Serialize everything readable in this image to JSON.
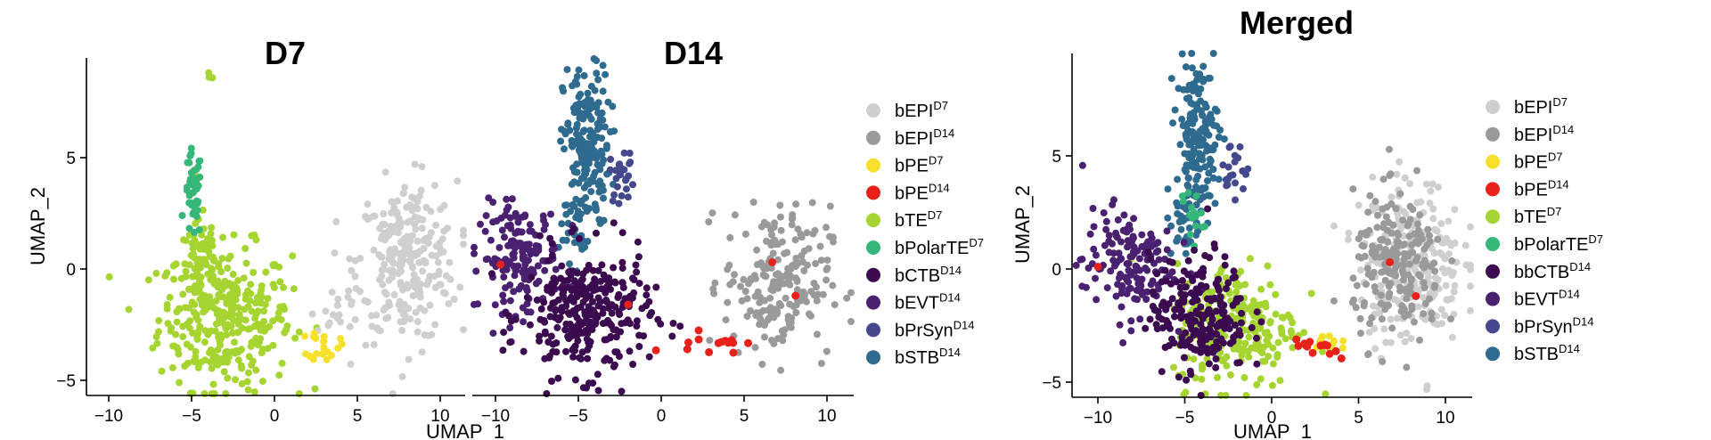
{
  "chart_data": [
    {
      "type": "scatter",
      "title": "D7",
      "xlabel": "UMAP_1",
      "ylabel": "UMAP_2",
      "xlim": [
        -12,
        12
      ],
      "ylim": [
        -6,
        9.5
      ],
      "xticks": [
        -10,
        -5,
        0,
        5,
        10
      ],
      "yticks": [
        -5,
        0,
        5
      ],
      "grid": false,
      "clusters": [
        {
          "group": "bTE_D7",
          "cx": -3.0,
          "cy": -2.2,
          "sx": 2.0,
          "sy": 1.6,
          "n": 320
        },
        {
          "group": "bTE_D7",
          "cx": -4.5,
          "cy": 0.3,
          "sx": 0.7,
          "sy": 1.2,
          "n": 60
        },
        {
          "group": "bTE_D7",
          "cx": -3.9,
          "cy": 8.6,
          "sx": 0.3,
          "sy": 0.1,
          "n": 3
        },
        {
          "group": "bPolarTE_D7",
          "cx": -4.9,
          "cy": 3.3,
          "sx": 0.25,
          "sy": 1.0,
          "n": 45
        },
        {
          "group": "bEPI_D7",
          "cx": 8.0,
          "cy": 0.3,
          "sx": 1.5,
          "sy": 1.8,
          "n": 260
        },
        {
          "group": "bEPI_D7",
          "cx": 3.8,
          "cy": -1.6,
          "sx": 0.7,
          "sy": 0.7,
          "n": 18
        },
        {
          "group": "bPE_D7",
          "cx": 3.0,
          "cy": -3.4,
          "sx": 0.45,
          "sy": 0.35,
          "n": 22
        }
      ]
    },
    {
      "type": "scatter",
      "title": "D14",
      "xlabel": "UMAP_1",
      "ylabel": "",
      "xlim": [
        -12,
        12
      ],
      "ylim": [
        -6,
        9.5
      ],
      "xticks": [
        -10,
        -5,
        0,
        5,
        10
      ],
      "yticks": [],
      "grid": false,
      "clusters": [
        {
          "group": "bSTB_D14",
          "cx": -4.5,
          "cy": 5.5,
          "sx": 0.7,
          "sy": 1.8,
          "n": 180
        },
        {
          "group": "bSTB_D14",
          "cx": -5.3,
          "cy": 2.0,
          "sx": 0.4,
          "sy": 0.8,
          "n": 30
        },
        {
          "group": "bPrSyn_D14",
          "cx": -2.3,
          "cy": 4.2,
          "sx": 0.4,
          "sy": 0.6,
          "n": 25
        },
        {
          "group": "bEVT_D14",
          "cx": -8.5,
          "cy": 0.5,
          "sx": 1.2,
          "sy": 1.2,
          "n": 160
        },
        {
          "group": "bCTB_D14",
          "cx": -4.5,
          "cy": -2.0,
          "sx": 1.9,
          "sy": 1.4,
          "n": 300
        },
        {
          "group": "bEPI_D14",
          "cx": 7.0,
          "cy": -0.6,
          "sx": 1.6,
          "sy": 1.7,
          "n": 200
        },
        {
          "group": "bPE_D14",
          "cx": 3.0,
          "cy": -3.2,
          "sx": 1.0,
          "sy": 0.3,
          "n": 14
        },
        {
          "group": "bPE_D14",
          "cx": -9.7,
          "cy": 0.2,
          "sx": 0.05,
          "sy": 0.05,
          "n": 1
        },
        {
          "group": "bPE_D14",
          "cx": 6.7,
          "cy": 0.3,
          "sx": 0.05,
          "sy": 0.05,
          "n": 1
        },
        {
          "group": "bPE_D14",
          "cx": 8.1,
          "cy": -1.2,
          "sx": 0.05,
          "sy": 0.05,
          "n": 1
        },
        {
          "group": "bPE_D14",
          "cx": -2.0,
          "cy": -1.6,
          "sx": 0.05,
          "sy": 0.05,
          "n": 1
        }
      ]
    },
    {
      "type": "scatter",
      "title": "Merged",
      "xlabel": "UMAP_1",
      "ylabel": "UMAP_2",
      "xlim": [
        -12,
        12
      ],
      "ylim": [
        -6,
        9.5
      ],
      "xticks": [
        -10,
        -5,
        0,
        5,
        10
      ],
      "yticks": [
        -5,
        0,
        5
      ],
      "grid": false,
      "clusters": [
        {
          "group": "bTE_D7",
          "cx": -2.0,
          "cy": -2.5,
          "sx": 1.8,
          "sy": 1.4,
          "n": 230
        },
        {
          "group": "bSTB_D14",
          "cx": -4.3,
          "cy": 5.8,
          "sx": 0.6,
          "sy": 1.7,
          "n": 170
        },
        {
          "group": "bSTB_D14",
          "cx": -5.0,
          "cy": 2.0,
          "sx": 0.4,
          "sy": 0.8,
          "n": 30
        },
        {
          "group": "bPolarTE_D7",
          "cx": -4.6,
          "cy": 2.3,
          "sx": 0.3,
          "sy": 0.7,
          "n": 15
        },
        {
          "group": "bPrSyn_D14",
          "cx": -2.2,
          "cy": 4.4,
          "sx": 0.4,
          "sy": 0.6,
          "n": 20
        },
        {
          "group": "bEVT_D14",
          "cx": -8.3,
          "cy": 0.3,
          "sx": 1.3,
          "sy": 1.2,
          "n": 150
        },
        {
          "group": "bCTB_D14",
          "cx": -4.2,
          "cy": -2.0,
          "sx": 1.4,
          "sy": 1.3,
          "n": 220
        },
        {
          "group": "bEPI_D7",
          "cx": 8.0,
          "cy": 0.3,
          "sx": 1.5,
          "sy": 1.8,
          "n": 240
        },
        {
          "group": "bEPI_D14",
          "cx": 7.3,
          "cy": 0.0,
          "sx": 1.3,
          "sy": 1.6,
          "n": 200
        },
        {
          "group": "bPE_D7",
          "cx": 3.2,
          "cy": -3.3,
          "sx": 0.4,
          "sy": 0.3,
          "n": 12
        },
        {
          "group": "bPE_D14",
          "cx": 2.8,
          "cy": -3.5,
          "sx": 0.8,
          "sy": 0.3,
          "n": 14
        },
        {
          "group": "bPE_D14",
          "cx": -10.0,
          "cy": 0.1,
          "sx": 0.05,
          "sy": 0.05,
          "n": 1
        },
        {
          "group": "bPE_D14",
          "cx": 6.8,
          "cy": 0.3,
          "sx": 0.05,
          "sy": 0.05,
          "n": 1
        },
        {
          "group": "bPE_D14",
          "cx": 8.3,
          "cy": -1.2,
          "sx": 0.05,
          "sy": 0.05,
          "n": 1
        }
      ]
    }
  ],
  "legends": [
    {
      "items": [
        {
          "base": "bEPI",
          "sup": "D7",
          "key": "bEPI_D7"
        },
        {
          "base": "bEPI",
          "sup": "D14",
          "key": "bEPI_D14"
        },
        {
          "base": "bPE",
          "sup": "D7",
          "key": "bPE_D7"
        },
        {
          "base": "bPE",
          "sup": "D14",
          "key": "bPE_D14"
        },
        {
          "base": "bTE",
          "sup": "D7",
          "key": "bTE_D7"
        },
        {
          "base": "bPolarTE",
          "sup": "D7",
          "key": "bPolarTE_D7"
        },
        {
          "base": "bCTB",
          "sup": "D14",
          "key": "bCTB_D14"
        },
        {
          "base": "bEVT",
          "sup": "D14",
          "key": "bEVT_D14"
        },
        {
          "base": "bPrSyn",
          "sup": "D14",
          "key": "bPrSyn_D14"
        },
        {
          "base": "bSTB",
          "sup": "D14",
          "key": "bSTB_D14"
        }
      ]
    },
    {
      "items": [
        {
          "base": "bEPI",
          "sup": "D7",
          "key": "bEPI_D7"
        },
        {
          "base": "bEPI",
          "sup": "D14",
          "key": "bEPI_D14"
        },
        {
          "base": "bPE",
          "sup": "D7",
          "key": "bPE_D7"
        },
        {
          "base": "bPE",
          "sup": "D14",
          "key": "bPE_D14"
        },
        {
          "base": "bTE",
          "sup": "D7",
          "key": "bTE_D7"
        },
        {
          "base": "bPolarTE",
          "sup": "D7",
          "key": "bPolarTE_D7"
        },
        {
          "base": "bbCTB",
          "sup": "D14",
          "key": "bCTB_D14"
        },
        {
          "base": "bEVT",
          "sup": "D14",
          "key": "bEVT_D14"
        },
        {
          "base": "bPrSyn",
          "sup": "D14",
          "key": "bPrSyn_D14"
        },
        {
          "base": "bSTB",
          "sup": "D14",
          "key": "bSTB_D14"
        }
      ]
    }
  ],
  "colors": {
    "bEPI_D7": "#cfcfcf",
    "bEPI_D14": "#9a9a9a",
    "bPE_D7": "#f5e02b",
    "bPE_D14": "#e8211b",
    "bTE_D7": "#a6d532",
    "bPolarTE_D7": "#35b779",
    "bCTB_D14": "#3b0a4f",
    "bEVT_D14": "#4a2170",
    "bPrSyn_D14": "#45488c",
    "bSTB_D14": "#2f6b8f"
  }
}
